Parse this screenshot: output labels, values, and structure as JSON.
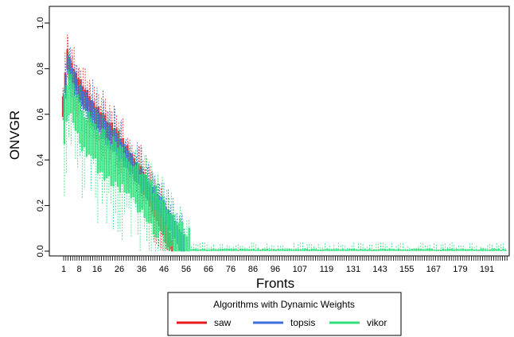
{
  "chart_data": {
    "type": "boxplot",
    "title": "",
    "xlabel": "Fronts",
    "ylabel": "ONVGR",
    "x_tick_labels": [
      "1",
      "8",
      "16",
      "26",
      "36",
      "46",
      "56",
      "66",
      "76",
      "86",
      "96",
      "107",
      "119",
      "131",
      "143",
      "155",
      "167",
      "179",
      "191"
    ],
    "y_tick_labels": [
      "0.0",
      "0.2",
      "0.4",
      "0.6",
      "0.8",
      "1.0"
    ],
    "ylim": [
      0,
      1
    ],
    "n_fronts": 200,
    "legend": {
      "title": "Algorithms with Dynamic Weights",
      "placement": "bottom-center",
      "entries": [
        "saw",
        "topsis",
        "vikor"
      ]
    },
    "series": [
      {
        "name": "saw",
        "color": "#E41A1C",
        "style": "dashed-box",
        "values": [
          {
            "front": 1,
            "median": 0.64
          },
          {
            "front": 3,
            "median": 0.85
          },
          {
            "front": 8,
            "median": 0.72
          },
          {
            "front": 16,
            "median": 0.6
          },
          {
            "front": 26,
            "median": 0.48
          },
          {
            "front": 36,
            "median": 0.33
          },
          {
            "front": 46,
            "median": 0.12
          },
          {
            "front": 50,
            "median": 0.02
          }
        ]
      },
      {
        "name": "topsis",
        "color": "#3B6FD9",
        "style": "dashed-box",
        "values": [
          {
            "front": 1,
            "median": 0.65
          },
          {
            "front": 3,
            "median": 0.82
          },
          {
            "front": 8,
            "median": 0.7
          },
          {
            "front": 16,
            "median": 0.58
          },
          {
            "front": 26,
            "median": 0.46
          },
          {
            "front": 36,
            "median": 0.32
          },
          {
            "front": 46,
            "median": 0.18
          },
          {
            "front": 55,
            "median": 0.03
          }
        ]
      },
      {
        "name": "vikor",
        "color": "#2EE07A",
        "style": "dashed-box",
        "values": [
          {
            "front": 1,
            "median": 0.6
          },
          {
            "front": 3,
            "median": 0.72
          },
          {
            "front": 8,
            "median": 0.56
          },
          {
            "front": 16,
            "median": 0.47
          },
          {
            "front": 26,
            "median": 0.38
          },
          {
            "front": 36,
            "median": 0.27
          },
          {
            "front": 46,
            "median": 0.14
          },
          {
            "front": 56,
            "median": 0.01
          },
          {
            "front": 100,
            "median": 0.005
          },
          {
            "front": 200,
            "median": 0.005
          }
        ]
      }
    ]
  }
}
